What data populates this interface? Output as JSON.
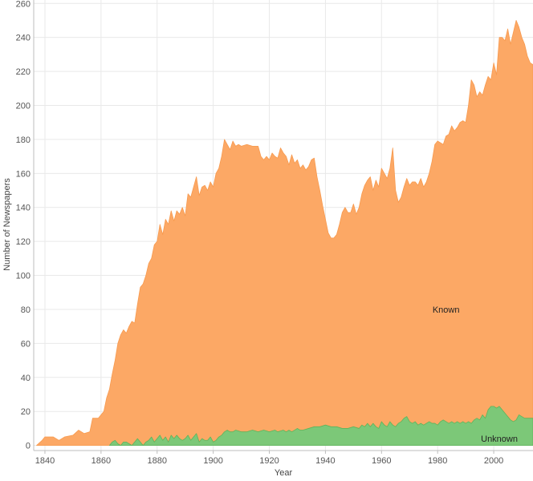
{
  "chart_data": {
    "type": "area",
    "stacked": false,
    "xlabel": "Year",
    "ylabel": "Number of Newspapers",
    "xlim": [
      1836,
      2014
    ],
    "ylim": [
      -3,
      262
    ],
    "x_ticks": [
      1840,
      1860,
      1880,
      1900,
      1920,
      1940,
      1960,
      1980,
      2000
    ],
    "y_ticks": [
      0,
      20,
      40,
      60,
      80,
      100,
      120,
      140,
      160,
      180,
      200,
      220,
      240,
      260
    ],
    "grid": true,
    "legend": "none",
    "series": [
      {
        "name": "Known",
        "color": "#fca865",
        "stroke": "#f79a4f",
        "label_at": [
          1983,
          80
        ],
        "points": [
          [
            1837,
            0
          ],
          [
            1839,
            3
          ],
          [
            1840,
            5
          ],
          [
            1843,
            5
          ],
          [
            1845,
            3
          ],
          [
            1847,
            5
          ],
          [
            1850,
            6
          ],
          [
            1852,
            9
          ],
          [
            1854,
            7
          ],
          [
            1856,
            8
          ],
          [
            1857,
            16
          ],
          [
            1859,
            16
          ],
          [
            1861,
            20
          ],
          [
            1862,
            28
          ],
          [
            1863,
            33
          ],
          [
            1864,
            42
          ],
          [
            1865,
            50
          ],
          [
            1866,
            60
          ],
          [
            1867,
            65
          ],
          [
            1868,
            68
          ],
          [
            1869,
            66
          ],
          [
            1870,
            70
          ],
          [
            1871,
            73
          ],
          [
            1872,
            72
          ],
          [
            1873,
            83
          ],
          [
            1874,
            93
          ],
          [
            1875,
            95
          ],
          [
            1876,
            100
          ],
          [
            1877,
            107
          ],
          [
            1878,
            110
          ],
          [
            1879,
            118
          ],
          [
            1880,
            120
          ],
          [
            1881,
            130
          ],
          [
            1882,
            124
          ],
          [
            1883,
            133
          ],
          [
            1884,
            130
          ],
          [
            1885,
            138
          ],
          [
            1886,
            132
          ],
          [
            1887,
            138
          ],
          [
            1888,
            136
          ],
          [
            1889,
            140
          ],
          [
            1890,
            135
          ],
          [
            1891,
            148
          ],
          [
            1892,
            146
          ],
          [
            1893,
            152
          ],
          [
            1894,
            158
          ],
          [
            1895,
            147
          ],
          [
            1896,
            152
          ],
          [
            1897,
            153
          ],
          [
            1898,
            150
          ],
          [
            1899,
            155
          ],
          [
            1900,
            152
          ],
          [
            1901,
            160
          ],
          [
            1902,
            163
          ],
          [
            1903,
            170
          ],
          [
            1904,
            180
          ],
          [
            1905,
            177
          ],
          [
            1906,
            174
          ],
          [
            1907,
            179
          ],
          [
            1908,
            176
          ],
          [
            1909,
            177
          ],
          [
            1910,
            176
          ],
          [
            1912,
            177
          ],
          [
            1914,
            176
          ],
          [
            1916,
            176
          ],
          [
            1917,
            170
          ],
          [
            1918,
            168
          ],
          [
            1919,
            170
          ],
          [
            1920,
            168
          ],
          [
            1921,
            172
          ],
          [
            1922,
            170
          ],
          [
            1923,
            169
          ],
          [
            1924,
            175
          ],
          [
            1925,
            172
          ],
          [
            1926,
            170
          ],
          [
            1927,
            165
          ],
          [
            1928,
            171
          ],
          [
            1929,
            166
          ],
          [
            1930,
            168
          ],
          [
            1931,
            163
          ],
          [
            1932,
            165
          ],
          [
            1933,
            162
          ],
          [
            1934,
            164
          ],
          [
            1935,
            168
          ],
          [
            1936,
            169
          ],
          [
            1937,
            158
          ],
          [
            1938,
            150
          ],
          [
            1939,
            141
          ],
          [
            1940,
            133
          ],
          [
            1941,
            125
          ],
          [
            1942,
            122
          ],
          [
            1943,
            122
          ],
          [
            1944,
            124
          ],
          [
            1945,
            130
          ],
          [
            1946,
            137
          ],
          [
            1947,
            140
          ],
          [
            1948,
            137
          ],
          [
            1949,
            137
          ],
          [
            1950,
            142
          ],
          [
            1951,
            136
          ],
          [
            1952,
            140
          ],
          [
            1953,
            148
          ],
          [
            1954,
            153
          ],
          [
            1955,
            156
          ],
          [
            1956,
            158
          ],
          [
            1957,
            150
          ],
          [
            1958,
            156
          ],
          [
            1959,
            152
          ],
          [
            1960,
            163
          ],
          [
            1961,
            160
          ],
          [
            1962,
            157
          ],
          [
            1963,
            163
          ],
          [
            1964,
            175
          ],
          [
            1965,
            150
          ],
          [
            1966,
            143
          ],
          [
            1967,
            146
          ],
          [
            1968,
            152
          ],
          [
            1969,
            157
          ],
          [
            1970,
            153
          ],
          [
            1971,
            155
          ],
          [
            1972,
            155
          ],
          [
            1973,
            153
          ],
          [
            1974,
            157
          ],
          [
            1975,
            152
          ],
          [
            1976,
            155
          ],
          [
            1977,
            160
          ],
          [
            1978,
            167
          ],
          [
            1979,
            177
          ],
          [
            1980,
            179
          ],
          [
            1981,
            178
          ],
          [
            1982,
            177
          ],
          [
            1983,
            182
          ],
          [
            1984,
            183
          ],
          [
            1985,
            188
          ],
          [
            1986,
            185
          ],
          [
            1987,
            187
          ],
          [
            1988,
            190
          ],
          [
            1989,
            191
          ],
          [
            1990,
            190
          ],
          [
            1991,
            200
          ],
          [
            1992,
            215
          ],
          [
            1993,
            212
          ],
          [
            1994,
            205
          ],
          [
            1995,
            208
          ],
          [
            1996,
            206
          ],
          [
            1997,
            212
          ],
          [
            1998,
            217
          ],
          [
            1999,
            215
          ],
          [
            2000,
            225
          ],
          [
            2001,
            218
          ],
          [
            2002,
            240
          ],
          [
            2003,
            240
          ],
          [
            2004,
            238
          ],
          [
            2005,
            245
          ],
          [
            2006,
            236
          ],
          [
            2007,
            243
          ],
          [
            2008,
            250
          ],
          [
            2009,
            246
          ],
          [
            2010,
            240
          ],
          [
            2011,
            236
          ],
          [
            2012,
            229
          ],
          [
            2013,
            225
          ],
          [
            2014,
            224
          ]
        ]
      },
      {
        "name": "Unknown",
        "color": "#7cc878",
        "stroke": "#5fb35b",
        "label_at": [
          2002,
          4
        ],
        "points": [
          [
            1863,
            0
          ],
          [
            1864,
            2
          ],
          [
            1865,
            3
          ],
          [
            1866,
            1
          ],
          [
            1867,
            0
          ],
          [
            1868,
            2
          ],
          [
            1869,
            2
          ],
          [
            1870,
            1
          ],
          [
            1871,
            0
          ],
          [
            1872,
            2
          ],
          [
            1873,
            4
          ],
          [
            1874,
            2
          ],
          [
            1875,
            0
          ],
          [
            1876,
            2
          ],
          [
            1877,
            3
          ],
          [
            1878,
            5
          ],
          [
            1879,
            2
          ],
          [
            1880,
            4
          ],
          [
            1881,
            6
          ],
          [
            1882,
            3
          ],
          [
            1883,
            5
          ],
          [
            1884,
            2
          ],
          [
            1885,
            6
          ],
          [
            1886,
            4
          ],
          [
            1887,
            6
          ],
          [
            1888,
            4
          ],
          [
            1889,
            3
          ],
          [
            1890,
            4
          ],
          [
            1891,
            6
          ],
          [
            1892,
            3
          ],
          [
            1893,
            5
          ],
          [
            1894,
            7
          ],
          [
            1895,
            2
          ],
          [
            1896,
            4
          ],
          [
            1897,
            3
          ],
          [
            1898,
            3
          ],
          [
            1899,
            5
          ],
          [
            1900,
            2
          ],
          [
            1901,
            3
          ],
          [
            1902,
            5
          ],
          [
            1903,
            6
          ],
          [
            1904,
            8
          ],
          [
            1905,
            9
          ],
          [
            1906,
            8
          ],
          [
            1907,
            8
          ],
          [
            1908,
            9
          ],
          [
            1910,
            8
          ],
          [
            1912,
            8
          ],
          [
            1914,
            9
          ],
          [
            1916,
            8
          ],
          [
            1918,
            9
          ],
          [
            1920,
            8
          ],
          [
            1922,
            9
          ],
          [
            1923,
            8
          ],
          [
            1925,
            9
          ],
          [
            1926,
            8
          ],
          [
            1927,
            9
          ],
          [
            1928,
            8
          ],
          [
            1929,
            9
          ],
          [
            1930,
            10
          ],
          [
            1931,
            9
          ],
          [
            1932,
            9
          ],
          [
            1934,
            10
          ],
          [
            1936,
            11
          ],
          [
            1938,
            11
          ],
          [
            1940,
            12
          ],
          [
            1942,
            11
          ],
          [
            1944,
            11
          ],
          [
            1946,
            10
          ],
          [
            1948,
            10
          ],
          [
            1950,
            11
          ],
          [
            1952,
            10
          ],
          [
            1953,
            12
          ],
          [
            1954,
            11
          ],
          [
            1955,
            13
          ],
          [
            1956,
            11
          ],
          [
            1957,
            13
          ],
          [
            1958,
            11
          ],
          [
            1959,
            10
          ],
          [
            1960,
            14
          ],
          [
            1961,
            12
          ],
          [
            1962,
            11
          ],
          [
            1963,
            14
          ],
          [
            1964,
            12
          ],
          [
            1965,
            11
          ],
          [
            1966,
            13
          ],
          [
            1967,
            14
          ],
          [
            1968,
            16
          ],
          [
            1969,
            17
          ],
          [
            1970,
            14
          ],
          [
            1971,
            13
          ],
          [
            1972,
            14
          ],
          [
            1973,
            12
          ],
          [
            1974,
            13
          ],
          [
            1975,
            12
          ],
          [
            1976,
            13
          ],
          [
            1977,
            14
          ],
          [
            1978,
            13
          ],
          [
            1979,
            13
          ],
          [
            1980,
            12
          ],
          [
            1981,
            14
          ],
          [
            1982,
            15
          ],
          [
            1983,
            14
          ],
          [
            1984,
            13
          ],
          [
            1985,
            14
          ],
          [
            1986,
            13
          ],
          [
            1987,
            14
          ],
          [
            1988,
            13
          ],
          [
            1989,
            14
          ],
          [
            1990,
            13
          ],
          [
            1991,
            14
          ],
          [
            1992,
            13
          ],
          [
            1993,
            15
          ],
          [
            1994,
            16
          ],
          [
            1995,
            15
          ],
          [
            1996,
            18
          ],
          [
            1997,
            16
          ],
          [
            1998,
            21
          ],
          [
            1999,
            23
          ],
          [
            2000,
            23
          ],
          [
            2001,
            22
          ],
          [
            2002,
            23
          ],
          [
            2003,
            21
          ],
          [
            2004,
            19
          ],
          [
            2005,
            17
          ],
          [
            2006,
            15
          ],
          [
            2007,
            14
          ],
          [
            2008,
            15
          ],
          [
            2009,
            18
          ],
          [
            2010,
            17
          ],
          [
            2011,
            16
          ],
          [
            2012,
            16
          ],
          [
            2013,
            16
          ],
          [
            2014,
            16
          ]
        ]
      }
    ]
  }
}
